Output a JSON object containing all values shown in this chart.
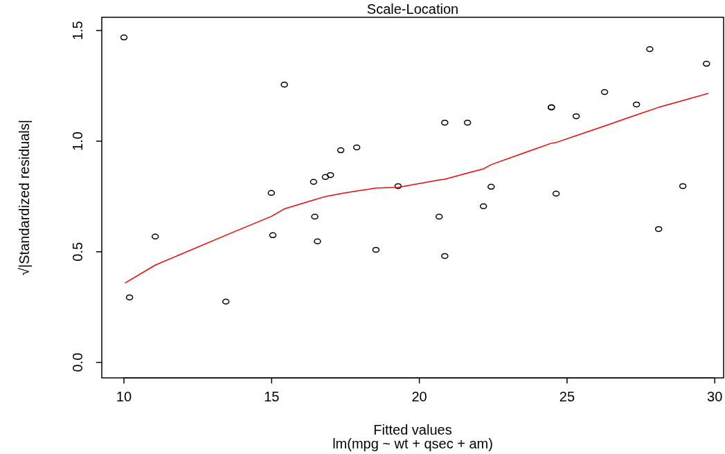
{
  "chart_data": {
    "type": "scatter",
    "title": "Scale-Location",
    "xlabel": "Fitted values",
    "ylabel": "√|Standardized residuals|",
    "annotations": [
      "lm(mpg ~ wt + qsec + am)"
    ],
    "xlim": [
      9.25,
      30.3
    ],
    "ylim": [
      -0.07,
      1.56
    ],
    "xticks": [
      10,
      15,
      20,
      25,
      30
    ],
    "yticks": [
      {
        "value": 0,
        "label": "0.0"
      },
      {
        "value": 0.5,
        "label": "0.5"
      },
      {
        "value": 1,
        "label": "1.0"
      },
      {
        "value": 1.5,
        "label": "1.5"
      }
    ],
    "grid": false,
    "series": [
      {
        "color": "#000000",
        "marker": "circle",
        "x": [
          10.0,
          10.19,
          11.06,
          13.45,
          14.99,
          15.04,
          15.43,
          16.42,
          16.46,
          16.55,
          16.82,
          16.99,
          17.34,
          17.88,
          18.53,
          19.28,
          20.67,
          20.86,
          20.86,
          21.63,
          22.17,
          22.43,
          24.47,
          24.47,
          24.63,
          25.31,
          26.27,
          27.35,
          27.8,
          28.1,
          28.92,
          29.72
        ],
        "values": [
          1.469,
          0.294,
          0.569,
          0.275,
          0.766,
          0.575,
          1.256,
          0.816,
          0.659,
          0.547,
          0.838,
          0.847,
          0.959,
          0.972,
          0.509,
          0.797,
          0.659,
          1.084,
          0.481,
          1.084,
          0.706,
          0.794,
          1.153,
          1.153,
          0.763,
          1.113,
          1.222,
          1.166,
          1.416,
          0.603,
          0.797,
          1.35
        ]
      },
      {
        "type": "line",
        "color": "#ff0000",
        "marker": "none",
        "line_style": "solid",
        "x": [
          10.05,
          11.06,
          13.45,
          14.99,
          15.43,
          16.42,
          16.82,
          17.34,
          17.88,
          18.53,
          19.28,
          20.67,
          20.86,
          21.63,
          22.17,
          22.43,
          24.47,
          24.63,
          25.31,
          26.27,
          27.35,
          28.1,
          28.92,
          29.77
        ],
        "values": [
          0.36,
          0.44,
          0.575,
          0.66,
          0.694,
          0.734,
          0.75,
          0.763,
          0.775,
          0.788,
          0.791,
          0.825,
          0.828,
          0.856,
          0.875,
          0.894,
          0.991,
          0.994,
          1.025,
          1.069,
          1.119,
          1.153,
          1.184,
          1.216
        ]
      }
    ]
  }
}
